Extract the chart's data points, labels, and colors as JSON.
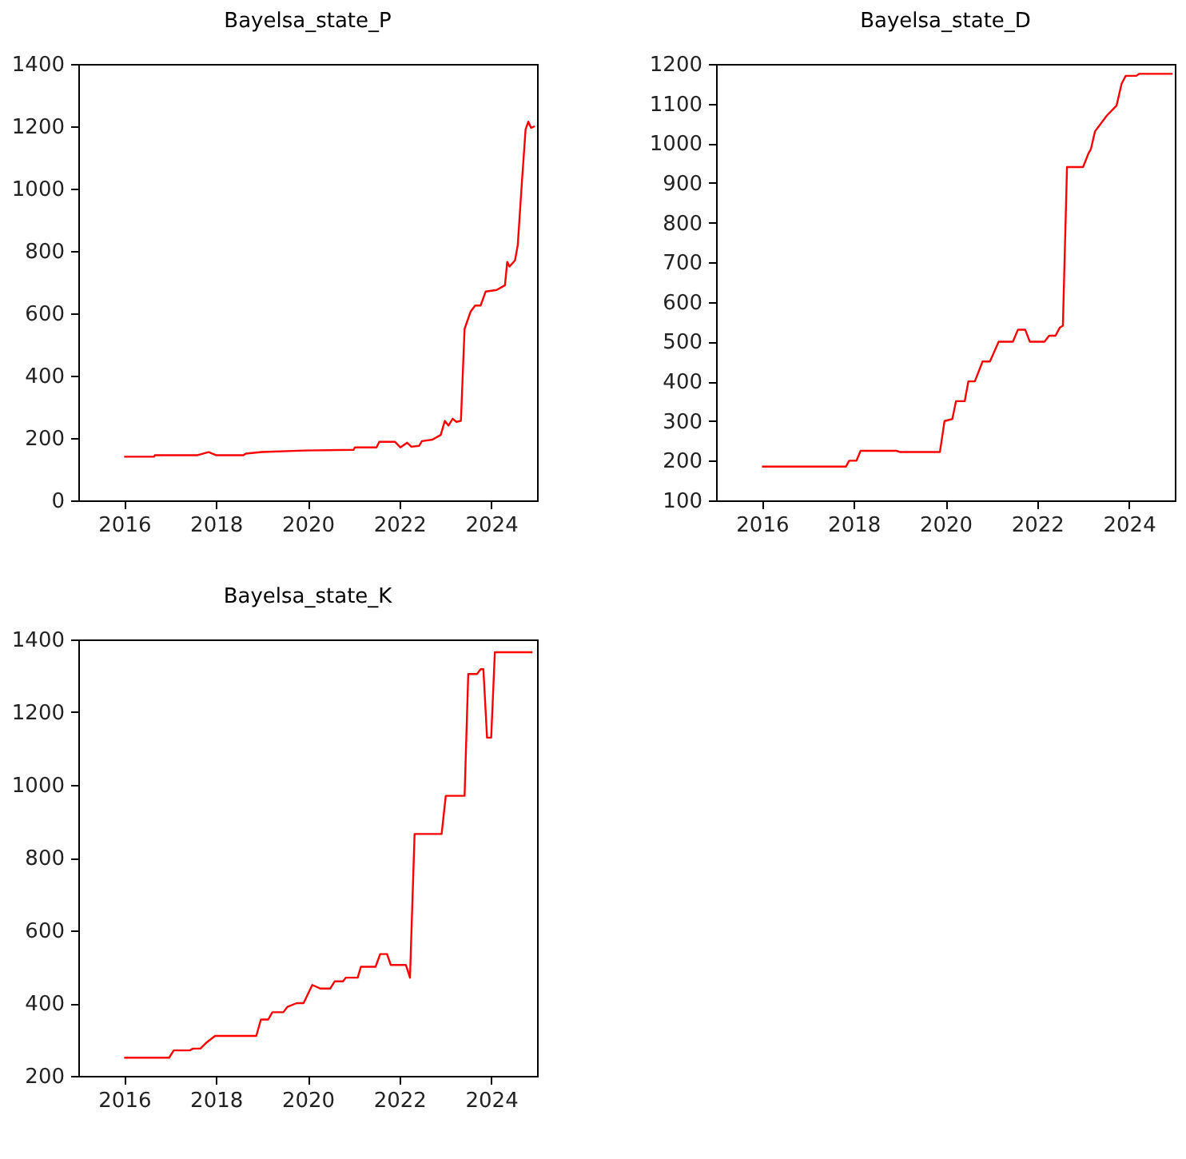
{
  "chart_data": [
    {
      "type": "line",
      "title": "Bayelsa_state_P",
      "xlim": [
        2015,
        2025
      ],
      "xticks": [
        2016,
        2018,
        2020,
        2022,
        2024
      ],
      "ylim": [
        0,
        1400
      ],
      "yticks": [
        0,
        200,
        400,
        600,
        800,
        1000,
        1200,
        1400
      ],
      "x": [
        2016.0,
        2016.65,
        2016.67,
        2017.6,
        2017.84,
        2018.0,
        2018.6,
        2018.65,
        2019.0,
        2019.93,
        2021.0,
        2021.03,
        2021.5,
        2021.56,
        2021.9,
        2022.02,
        2022.17,
        2022.26,
        2022.43,
        2022.49,
        2022.72,
        2022.9,
        2022.99,
        2023.07,
        2023.16,
        2023.24,
        2023.34,
        2023.42,
        2023.55,
        2023.65,
        2023.77,
        2023.88,
        2024.12,
        2024.3,
        2024.35,
        2024.4,
        2024.52,
        2024.58,
        2024.66,
        2024.75,
        2024.81,
        2024.87,
        2024.95
      ],
      "series": [
        {
          "color": "#ff0000",
          "values": [
            140,
            140,
            145,
            145,
            155,
            145,
            145,
            150,
            155,
            160,
            162,
            170,
            170,
            188,
            188,
            170,
            185,
            172,
            175,
            190,
            195,
            210,
            255,
            240,
            262,
            252,
            255,
            550,
            605,
            625,
            625,
            670,
            675,
            690,
            765,
            750,
            770,
            820,
            1000,
            1190,
            1215,
            1195,
            1200
          ]
        }
      ]
    },
    {
      "type": "line",
      "title": "Bayelsa_state_D",
      "xlim": [
        2015,
        2025
      ],
      "xticks": [
        2016,
        2018,
        2020,
        2022,
        2024
      ],
      "ylim": [
        100,
        1200
      ],
      "yticks": [
        100,
        200,
        300,
        400,
        500,
        600,
        700,
        800,
        900,
        1000,
        1100,
        1200
      ],
      "x": [
        2016.0,
        2017.83,
        2017.9,
        2018.06,
        2018.15,
        2018.93,
        2019.0,
        2019.88,
        2019.98,
        2020.15,
        2020.23,
        2020.42,
        2020.5,
        2020.64,
        2020.81,
        2020.97,
        2021.16,
        2021.47,
        2021.58,
        2021.74,
        2021.84,
        2022.16,
        2022.26,
        2022.4,
        2022.49,
        2022.56,
        2022.65,
        2023.0,
        2023.12,
        2023.17,
        2023.26,
        2023.52,
        2023.73,
        2023.84,
        2023.93,
        2024.16,
        2024.22,
        2024.95
      ],
      "series": [
        {
          "color": "#ff0000",
          "values": [
            185,
            185,
            200,
            200,
            225,
            225,
            222,
            222,
            300,
            305,
            350,
            350,
            400,
            400,
            450,
            450,
            500,
            500,
            530,
            530,
            500,
            500,
            515,
            515,
            535,
            540,
            940,
            940,
            975,
            985,
            1030,
            1070,
            1095,
            1150,
            1170,
            1170,
            1175,
            1175
          ]
        }
      ]
    },
    {
      "type": "line",
      "title": "Bayelsa_state_K",
      "xlim": [
        2015,
        2025
      ],
      "xticks": [
        2016,
        2018,
        2020,
        2022,
        2024
      ],
      "ylim": [
        200,
        1400
      ],
      "yticks": [
        200,
        400,
        600,
        800,
        1000,
        1200,
        1400
      ],
      "x": [
        2016.0,
        2016.98,
        2017.08,
        2017.43,
        2017.5,
        2017.66,
        2017.78,
        2017.98,
        2018.88,
        2018.98,
        2019.14,
        2019.23,
        2019.47,
        2019.56,
        2019.76,
        2019.91,
        2020.1,
        2020.28,
        2020.49,
        2020.59,
        2020.77,
        2020.83,
        2021.09,
        2021.16,
        2021.48,
        2021.58,
        2021.73,
        2021.81,
        2022.14,
        2022.23,
        2022.33,
        2022.92,
        2023.01,
        2023.42,
        2023.5,
        2023.69,
        2023.77,
        2023.83,
        2023.91,
        2024.0,
        2024.08,
        2024.9
      ],
      "series": [
        {
          "color": "#ff0000",
          "values": [
            250,
            250,
            270,
            270,
            275,
            275,
            290,
            310,
            310,
            355,
            355,
            375,
            375,
            390,
            400,
            400,
            450,
            440,
            440,
            460,
            460,
            470,
            470,
            500,
            500,
            535,
            535,
            505,
            505,
            470,
            865,
            865,
            970,
            970,
            1305,
            1305,
            1318,
            1318,
            1130,
            1130,
            1365,
            1365
          ]
        }
      ]
    }
  ]
}
